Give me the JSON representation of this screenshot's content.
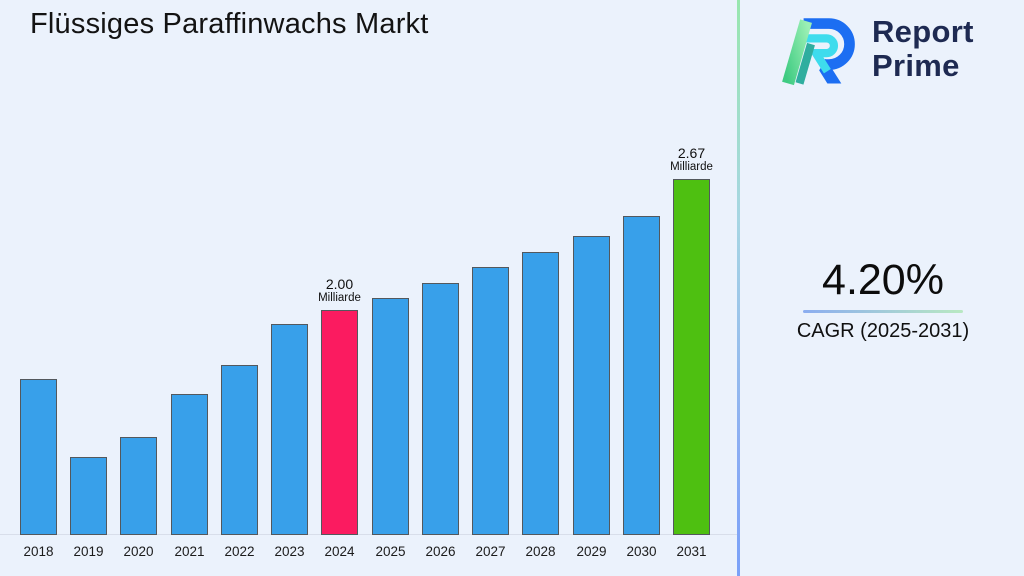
{
  "background": "#ebf2fc",
  "title": "Flüssiges Paraffinwachs Markt",
  "logo": {
    "name": "Report Prime",
    "line1": "Report",
    "line2": "Prime",
    "text_color": "#1e2a52"
  },
  "cagr": {
    "value": "4.20%",
    "label": "CAGR (2025-2031)",
    "underline_colors": [
      "#8badf0",
      "#b9e9c2"
    ]
  },
  "divider_colors": [
    "#98e7ae",
    "#a7d6e3",
    "#7aa1f8"
  ],
  "chart_data": {
    "type": "bar",
    "title": "Flüssiges Paraffinwachs Markt",
    "unit": "Milliarde",
    "categories": [
      "2018",
      "2019",
      "2020",
      "2021",
      "2022",
      "2023",
      "2024",
      "2025",
      "2026",
      "2027",
      "2028",
      "2029",
      "2030",
      "2031"
    ],
    "values": [
      1.65,
      1.25,
      1.35,
      1.57,
      1.72,
      1.93,
      2.0,
      2.06,
      2.14,
      2.22,
      2.3,
      2.38,
      2.48,
      2.67
    ],
    "value_labels": [
      {
        "category": "2024",
        "line1": "2.00",
        "line2": "Milliarde"
      },
      {
        "category": "2031",
        "line1": "2.67",
        "line2": "Milliarde"
      }
    ],
    "bar_color_default": "#38a0ea",
    "bar_color_overrides": {
      "2024": "#fb1b60",
      "2031": "#4ec011"
    },
    "bar_edge_color": "#53585d",
    "ylim": [
      0.85,
      2.85
    ],
    "xlabel": "",
    "ylabel": "",
    "grid": false,
    "legend": null
  }
}
